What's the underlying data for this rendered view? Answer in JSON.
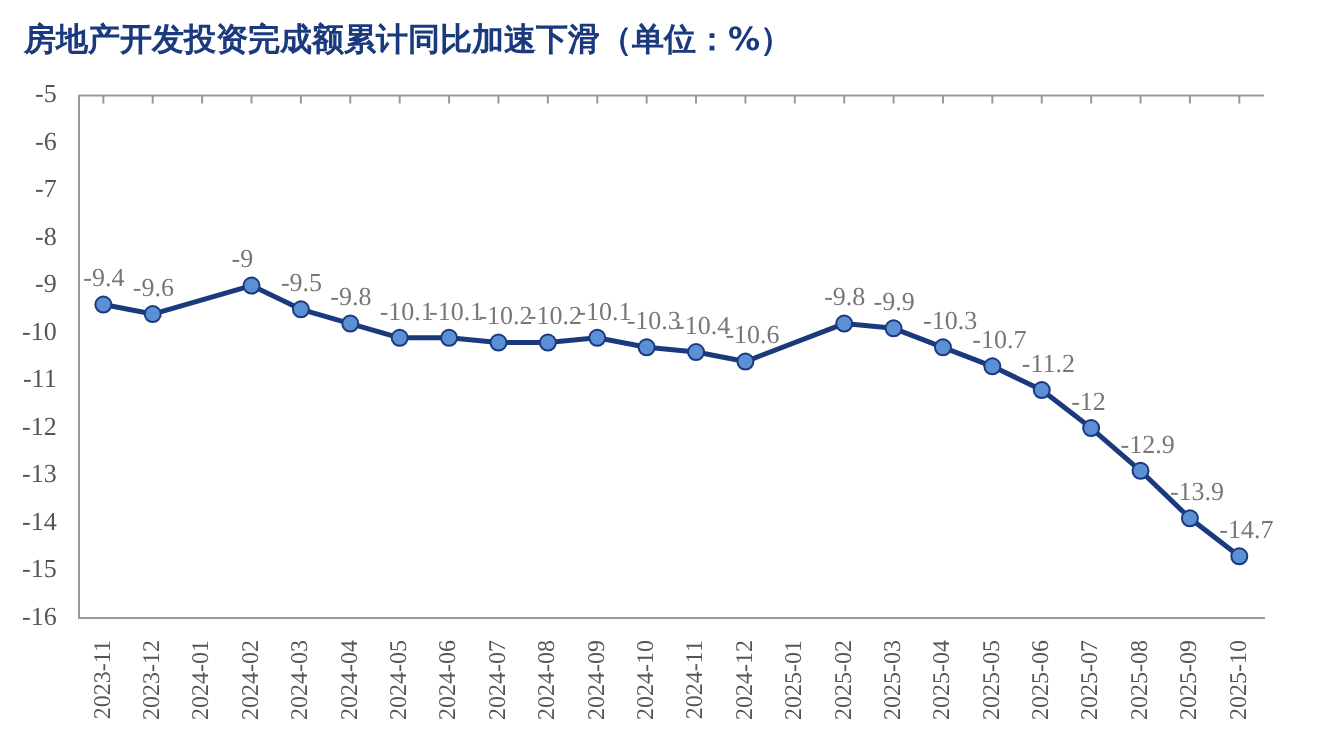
{
  "chart_data": {
    "type": "line",
    "title": "房地产开发投资完成额累计同比加速下滑（单位：%）",
    "categories": [
      "2023-11",
      "2023-12",
      "2024-01",
      "2024-02",
      "2024-03",
      "2024-04",
      "2024-05",
      "2024-06",
      "2024-07",
      "2024-08",
      "2024-09",
      "2024-10",
      "2024-11",
      "2024-12",
      "2025-01",
      "2025-02",
      "2025-03",
      "2025-04",
      "2025-05",
      "2025-06",
      "2025-07",
      "2025-08",
      "2025-09",
      "2025-10"
    ],
    "series": [
      {
        "color": "#1b3a7e",
        "values": [
          -9.4,
          -9.6,
          null,
          -9,
          -9.5,
          -9.8,
          -10.1,
          -10.1,
          -10.2,
          -10.2,
          -10.1,
          -10.3,
          -10.4,
          -10.6,
          null,
          -9.8,
          -9.9,
          -10.3,
          -10.7,
          -11.2,
          -12,
          -12.9,
          -13.9,
          -14.7
        ]
      }
    ],
    "ylim": [
      -16,
      -5
    ],
    "yticks": [
      -16,
      -15,
      -14,
      -13,
      -12,
      -11,
      -10,
      -9,
      -8,
      -7,
      -6,
      -5
    ],
    "grid": false,
    "legend": false,
    "marker": "circle",
    "line_style": "solid",
    "data_labels": true
  }
}
